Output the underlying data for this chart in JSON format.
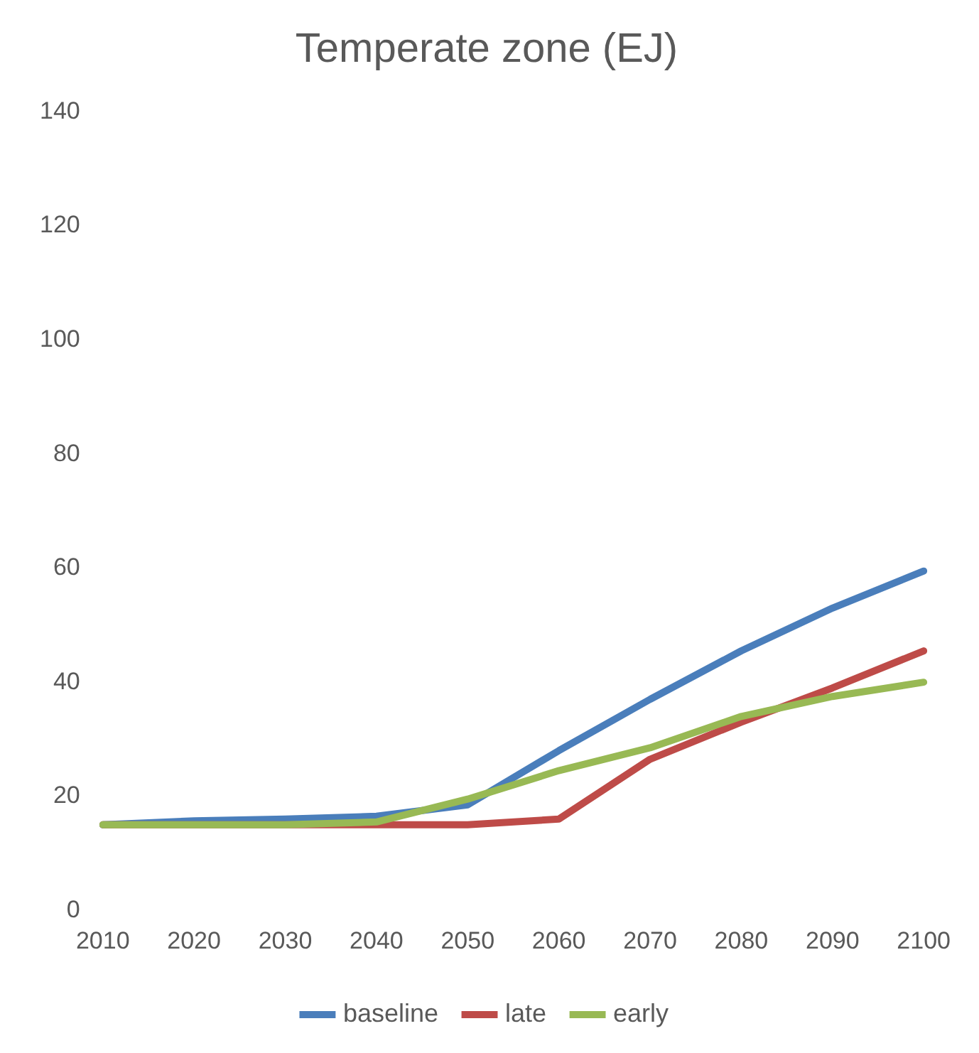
{
  "chart_data": {
    "type": "line",
    "title": "Temperate zone (EJ)",
    "categories": [
      "2010",
      "2020",
      "2030",
      "2040",
      "2050",
      "2060",
      "2070",
      "2080",
      "2090",
      "2100"
    ],
    "series": [
      {
        "name": "baseline",
        "color": "#4a7ebb",
        "values": [
          15,
          15.7,
          16,
          16.5,
          18.5,
          28,
          37,
          45.5,
          53,
          59.5
        ]
      },
      {
        "name": "late",
        "color": "#be4b48",
        "values": [
          15,
          15,
          15,
          15,
          15,
          16,
          26.5,
          33,
          39,
          45.5
        ]
      },
      {
        "name": "early",
        "color": "#98b954",
        "values": [
          15,
          15,
          15,
          15.5,
          19.5,
          24.5,
          28.5,
          34,
          37.5,
          40
        ]
      }
    ],
    "ylim": [
      0,
      140
    ],
    "yticks": [
      0,
      20,
      40,
      60,
      80,
      100,
      120,
      140
    ],
    "grid": false,
    "legend": "bottom",
    "marker": "none",
    "line_style": "solid"
  }
}
